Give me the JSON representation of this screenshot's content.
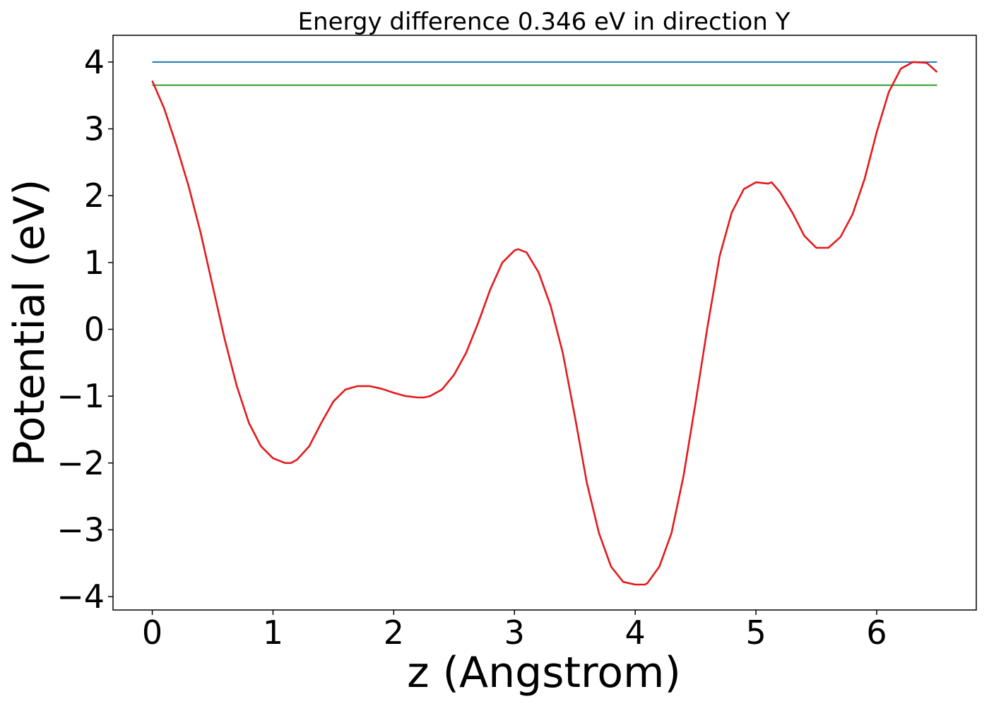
{
  "chart_data": {
    "type": "line",
    "title": "Energy difference 0.346 eV in direction Y",
    "xlabel": "z (Angstrom)",
    "ylabel": "Potential (eV)",
    "xlim": [
      -0.325,
      6.825
    ],
    "ylim": [
      -4.2,
      4.4
    ],
    "x_ticks": [
      0,
      1,
      2,
      3,
      4,
      5,
      6
    ],
    "x_tick_labels": [
      "0",
      "1",
      "2",
      "3",
      "4",
      "5",
      "6"
    ],
    "y_ticks": [
      4,
      3,
      2,
      1,
      0,
      -1,
      -2,
      -3,
      -4
    ],
    "y_tick_labels": [
      "4",
      "3",
      "2",
      "1",
      "0",
      "−1",
      "−2",
      "−3",
      "−4"
    ],
    "grid": false,
    "series": [
      {
        "color": "#1f77b4",
        "x": [
          0,
          6.5
        ],
        "y": [
          4.0,
          4.0
        ]
      },
      {
        "color": "#2ca02c",
        "x": [
          0,
          6.5
        ],
        "y": [
          3.654,
          3.654
        ]
      },
      {
        "color": "#e41a1c",
        "x": [
          0,
          0.1,
          0.2,
          0.3,
          0.4,
          0.5,
          0.6,
          0.7,
          0.8,
          0.9,
          1.0,
          1.1,
          1.15,
          1.2,
          1.3,
          1.4,
          1.5,
          1.6,
          1.7,
          1.8,
          1.9,
          2.0,
          2.1,
          2.2,
          2.25,
          2.3,
          2.4,
          2.5,
          2.6,
          2.7,
          2.8,
          2.9,
          3.0,
          3.03,
          3.1,
          3.2,
          3.3,
          3.4,
          3.5,
          3.6,
          3.7,
          3.8,
          3.9,
          4.0,
          4.08,
          4.1,
          4.2,
          4.3,
          4.4,
          4.5,
          4.6,
          4.7,
          4.8,
          4.9,
          5.0,
          5.1,
          5.13,
          5.2,
          5.3,
          5.4,
          5.5,
          5.6,
          5.7,
          5.8,
          5.9,
          6.0,
          6.1,
          6.2,
          6.3,
          6.4,
          6.42,
          6.5
        ],
        "y": [
          3.72,
          3.3,
          2.75,
          2.15,
          1.45,
          0.65,
          -0.15,
          -0.85,
          -1.4,
          -1.75,
          -1.93,
          -2.0,
          -2.0,
          -1.95,
          -1.75,
          -1.4,
          -1.08,
          -0.9,
          -0.85,
          -0.85,
          -0.89,
          -0.95,
          -1.0,
          -1.02,
          -1.02,
          -1.0,
          -0.9,
          -0.68,
          -0.35,
          0.1,
          0.6,
          1.0,
          1.18,
          1.2,
          1.15,
          0.85,
          0.35,
          -0.35,
          -1.3,
          -2.3,
          -3.05,
          -3.55,
          -3.78,
          -3.82,
          -3.82,
          -3.8,
          -3.55,
          -3.05,
          -2.2,
          -1.1,
          0.05,
          1.1,
          1.75,
          2.1,
          2.2,
          2.18,
          2.2,
          2.05,
          1.75,
          1.4,
          1.22,
          1.22,
          1.38,
          1.72,
          2.25,
          2.95,
          3.55,
          3.9,
          4.0,
          3.99,
          3.98,
          3.85
        ]
      }
    ]
  }
}
